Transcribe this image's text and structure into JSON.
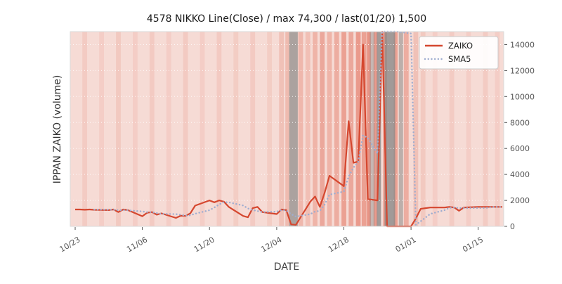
{
  "chart_data": {
    "type": "line",
    "title": "4578 NIKKO Line(Close) / max 74,300 / last(01/20) 1,500",
    "xlabel": "DATE",
    "ylabel": "IPPAN ZAIKO (volume)",
    "ylim": [
      0,
      15000
    ],
    "yticks": [
      0,
      2000,
      4000,
      6000,
      8000,
      10000,
      12000,
      14000
    ],
    "xticks": [
      {
        "label": "10/23",
        "day": 0
      },
      {
        "label": "11/06",
        "day": 14
      },
      {
        "label": "11/20",
        "day": 28
      },
      {
        "label": "12/04",
        "day": 42
      },
      {
        "label": "12/18",
        "day": 56
      },
      {
        "label": "01/01",
        "day": 70
      },
      {
        "label": "01/15",
        "day": 84
      }
    ],
    "x_unit": "days since 10/23",
    "grid": true,
    "legend_position": "upper right",
    "plot_background": "#f6dbd5",
    "series": [
      {
        "name": "ZAIKO",
        "color": "#d5472f",
        "style": "solid",
        "points": [
          [
            0,
            1300
          ],
          [
            1,
            1300
          ],
          [
            2,
            1280
          ],
          [
            3,
            1300
          ],
          [
            4,
            1270
          ],
          [
            7,
            1250
          ],
          [
            8,
            1300
          ],
          [
            9,
            1100
          ],
          [
            10,
            1300
          ],
          [
            11,
            1250
          ],
          [
            14,
            780
          ],
          [
            15,
            1050
          ],
          [
            16,
            1100
          ],
          [
            17,
            900
          ],
          [
            18,
            1000
          ],
          [
            21,
            650
          ],
          [
            22,
            820
          ],
          [
            23,
            800
          ],
          [
            24,
            1000
          ],
          [
            25,
            1600
          ],
          [
            28,
            2000
          ],
          [
            29,
            1850
          ],
          [
            30,
            2000
          ],
          [
            31,
            1900
          ],
          [
            32,
            1500
          ],
          [
            35,
            800
          ],
          [
            36,
            700
          ],
          [
            37,
            1400
          ],
          [
            38,
            1500
          ],
          [
            39,
            1100
          ],
          [
            42,
            950
          ],
          [
            43,
            1300
          ],
          [
            44,
            1250
          ],
          [
            45,
            150
          ],
          [
            46,
            120
          ],
          [
            49,
            1900
          ],
          [
            50,
            2300
          ],
          [
            51,
            1500
          ],
          [
            52,
            2600
          ],
          [
            53,
            3900
          ],
          [
            56,
            3100
          ],
          [
            57,
            8100
          ],
          [
            58,
            4900
          ],
          [
            59,
            5000
          ],
          [
            60,
            14000
          ],
          [
            61,
            2100
          ],
          [
            63,
            2000
          ],
          [
            64,
            74300
          ],
          [
            65,
            0
          ],
          [
            66,
            0
          ],
          [
            67,
            0
          ],
          [
            70,
            0
          ],
          [
            71,
            600
          ],
          [
            72,
            1350
          ],
          [
            73,
            1400
          ],
          [
            74,
            1450
          ],
          [
            77,
            1450
          ],
          [
            78,
            1500
          ],
          [
            79,
            1450
          ],
          [
            80,
            1200
          ],
          [
            81,
            1450
          ],
          [
            84,
            1500
          ],
          [
            85,
            1500
          ],
          [
            86,
            1500
          ],
          [
            87,
            1500
          ],
          [
            88,
            1500
          ],
          [
            89,
            1500
          ]
        ]
      },
      {
        "name": "SMA5",
        "color": "#9fadd0",
        "style": "dotted",
        "derived": "5-point moving average of ZAIKO"
      }
    ],
    "background_bands": [
      {
        "day": 2,
        "days": 1,
        "color": "#dd5a43",
        "alpha": 0.12
      },
      {
        "day": 5.5,
        "days": 1,
        "color": "#dd5a43",
        "alpha": 0.1
      },
      {
        "day": 9,
        "days": 1,
        "color": "#dd5a43",
        "alpha": 0.14
      },
      {
        "day": 12.5,
        "days": 1,
        "color": "#dd5a43",
        "alpha": 0.1
      },
      {
        "day": 16,
        "days": 1,
        "color": "#dd5a43",
        "alpha": 0.13
      },
      {
        "day": 19.5,
        "days": 1,
        "color": "#dd5a43",
        "alpha": 0.1
      },
      {
        "day": 23,
        "days": 1,
        "color": "#dd5a43",
        "alpha": 0.13
      },
      {
        "day": 26.5,
        "days": 1,
        "color": "#dd5a43",
        "alpha": 0.1
      },
      {
        "day": 30,
        "days": 1,
        "color": "#dd5a43",
        "alpha": 0.13
      },
      {
        "day": 33.5,
        "days": 1,
        "color": "#dd5a43",
        "alpha": 0.11
      },
      {
        "day": 37,
        "days": 1,
        "color": "#dd5a43",
        "alpha": 0.13
      },
      {
        "day": 40.5,
        "days": 1,
        "color": "#dd5a43",
        "alpha": 0.11
      },
      {
        "day": 43,
        "days": 1,
        "color": "#dd5a43",
        "alpha": 0.2
      },
      {
        "day": 44.2,
        "days": 0.8,
        "color": "#dd5a43",
        "alpha": 0.25
      },
      {
        "day": 47,
        "days": 1,
        "color": "#dd5a43",
        "alpha": 0.28
      },
      {
        "day": 48.5,
        "days": 1,
        "color": "#dd5a43",
        "alpha": 0.22
      },
      {
        "day": 50,
        "days": 1,
        "color": "#dd5a43",
        "alpha": 0.3
      },
      {
        "day": 51.5,
        "days": 1,
        "color": "#dd5a43",
        "alpha": 0.4
      },
      {
        "day": 53,
        "days": 1,
        "color": "#dd5a43",
        "alpha": 0.3
      },
      {
        "day": 54.5,
        "days": 1,
        "color": "#dd5a43",
        "alpha": 0.35
      },
      {
        "day": 56,
        "days": 1,
        "color": "#dd5a43",
        "alpha": 0.45
      },
      {
        "day": 57.5,
        "days": 1,
        "color": "#dd5a43",
        "alpha": 0.4
      },
      {
        "day": 59,
        "days": 1,
        "color": "#dd5a43",
        "alpha": 0.5
      },
      {
        "day": 60.2,
        "days": 1,
        "color": "#dd5a43",
        "alpha": 0.45
      },
      {
        "day": 61.2,
        "days": 0.8,
        "color": "#dd5a43",
        "alpha": 0.55
      },
      {
        "day": 62.6,
        "days": 0.8,
        "color": "#dd5a43",
        "alpha": 0.5
      },
      {
        "day": 64.6,
        "days": 0.8,
        "color": "#dd5a43",
        "alpha": 0.5
      },
      {
        "day": 66.8,
        "days": 0.8,
        "color": "#dd5a43",
        "alpha": 0.45
      },
      {
        "day": 69,
        "days": 1,
        "color": "#dd5a43",
        "alpha": 0.35
      },
      {
        "day": 71,
        "days": 1,
        "color": "#dd5a43",
        "alpha": 0.2
      },
      {
        "day": 72.5,
        "days": 1,
        "color": "#dd5a43",
        "alpha": 0.14
      },
      {
        "day": 75,
        "days": 1,
        "color": "#dd5a43",
        "alpha": 0.1
      },
      {
        "day": 78.5,
        "days": 1,
        "color": "#dd5a43",
        "alpha": 0.12
      },
      {
        "day": 82,
        "days": 1,
        "color": "#dd5a43",
        "alpha": 0.1
      },
      {
        "day": 85.5,
        "days": 1,
        "color": "#dd5a43",
        "alpha": 0.12
      },
      {
        "day": 88,
        "days": 1,
        "color": "#dd5a43",
        "alpha": 0.1
      },
      {
        "day": 45.5,
        "days": 1.8,
        "color": "#8c8a88",
        "alpha": 0.7
      },
      {
        "day": 61.9,
        "days": 1.0,
        "color": "#8c8a88",
        "alpha": 0.45
      },
      {
        "day": 63.3,
        "days": 0.9,
        "color": "#8c8a88",
        "alpha": 0.8
      },
      {
        "day": 65.6,
        "days": 2.2,
        "color": "#8c8a88",
        "alpha": 0.8
      },
      {
        "day": 67.9,
        "days": 0.9,
        "color": "#8c8a88",
        "alpha": 0.55
      }
    ]
  }
}
